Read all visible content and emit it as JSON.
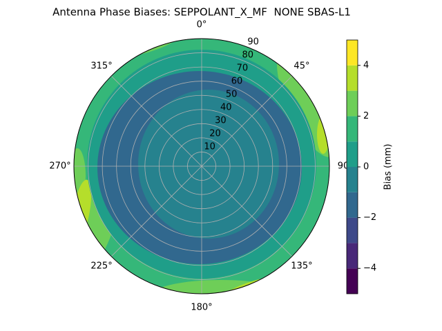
{
  "chart_data": {
    "type": "polar_contour",
    "title": "Antenna Phase Biases: SEPPOLANT_X_MF  NONE SBAS-L1",
    "rlim": [
      0,
      90
    ],
    "rticks": [
      10,
      20,
      30,
      40,
      50,
      60,
      70,
      80,
      90
    ],
    "thetaticks": [
      {
        "value": 0,
        "label": "0°"
      },
      {
        "value": 45,
        "label": "45°"
      },
      {
        "value": 90,
        "label": "90"
      },
      {
        "value": 135,
        "label": "135°"
      },
      {
        "value": 180,
        "label": "180°"
      },
      {
        "value": 225,
        "label": "225°"
      },
      {
        "value": 270,
        "label": "270°"
      },
      {
        "value": 315,
        "label": "315°"
      }
    ],
    "levels": [
      -5,
      -4,
      -3,
      -2,
      -1,
      0,
      1,
      2,
      3,
      4,
      5
    ],
    "colors": [
      "#440154",
      "#482878",
      "#3e4989",
      "#31688e",
      "#26828e",
      "#1f9e89",
      "#35b779",
      "#6ece58",
      "#b5de2b",
      "#fde725"
    ],
    "colorbar_label": "Bias (mm)",
    "colorbar_ticks": [
      {
        "value": -4,
        "label": "−4"
      },
      {
        "value": -2,
        "label": "−2"
      },
      0,
      2,
      4
    ],
    "grid": true
  }
}
